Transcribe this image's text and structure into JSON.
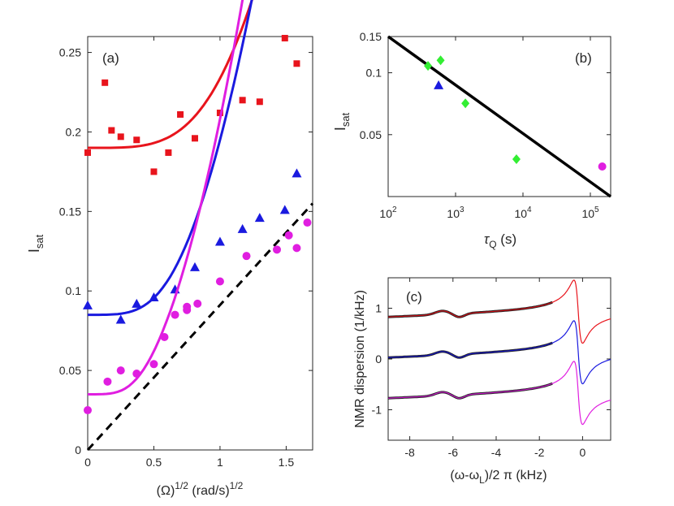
{
  "chart_data": [
    {
      "panel": "a",
      "type": "scatter",
      "label": "(a)",
      "xlabel_base": "(Ω)",
      "xlabel_exp1": "1/2",
      "xlabel_unit": " (rad/s)",
      "xlabel_exp2": "1/2",
      "ylabel_main": "I",
      "ylabel_sub": "sat",
      "xlim": [
        0,
        1.7
      ],
      "ylim": [
        0,
        0.26
      ],
      "xticks": [
        0,
        0.5,
        1,
        1.5
      ],
      "xtick_labels": [
        "0",
        "0.5",
        "1",
        "1.5"
      ],
      "yticks": [
        0,
        0.05,
        0.1,
        0.15,
        0.2,
        0.25
      ],
      "ytick_labels": [
        "0",
        "0.05",
        "0.1",
        "0.15",
        "0.2",
        "0.25"
      ],
      "series": [
        {
          "name": "red squares",
          "marker": "square",
          "color": "#e8141c",
          "x": [
            0,
            0.13,
            0.18,
            0.25,
            0.37,
            0.5,
            0.61,
            0.7,
            0.81,
            1.0,
            1.17,
            1.3,
            1.49,
            1.58
          ],
          "y": [
            0.187,
            0.231,
            0.201,
            0.197,
            0.195,
            0.175,
            0.187,
            0.211,
            0.196,
            0.212,
            0.22,
            0.219,
            0.259,
            0.243
          ],
          "fit": {
            "a": 0.19,
            "b": 0.0185
          }
        },
        {
          "name": "blue triangles",
          "marker": "triangle",
          "color": "#1a1adf",
          "x": [
            0,
            0.25,
            0.37,
            0.5,
            0.66,
            0.81,
            1.0,
            1.17,
            1.3,
            1.49,
            1.58
          ],
          "y": [
            0.091,
            0.082,
            0.092,
            0.096,
            0.101,
            0.115,
            0.131,
            0.139,
            0.146,
            0.151,
            0.174
          ],
          "fit": {
            "a": 0.085,
            "b": 0.0308
          }
        },
        {
          "name": "magenta circles",
          "marker": "circle",
          "color": "#e01ee0",
          "x": [
            0,
            0.15,
            0.25,
            0.37,
            0.5,
            0.58,
            0.66,
            0.75,
            0.75,
            0.83,
            1.0,
            1.2,
            1.43,
            1.52,
            1.58,
            1.66
          ],
          "y": [
            0.025,
            0.043,
            0.05,
            0.048,
            0.054,
            0.071,
            0.085,
            0.088,
            0.09,
            0.092,
            0.106,
            0.122,
            0.126,
            0.135,
            0.127,
            0.143
          ],
          "fit": {
            "a": 0.035,
            "b": 0.0421
          }
        }
      ],
      "reference_line": {
        "style": "dashed",
        "color": "#000000",
        "x": [
          0,
          1.7
        ],
        "y": [
          0,
          0.155
        ]
      }
    },
    {
      "panel": "b",
      "type": "scatter",
      "label": "(b)",
      "xlabel_main": "τ",
      "xlabel_sub": "Q",
      "xlabel_unit": " (s)",
      "ylabel_main": "I",
      "ylabel_sub": "sat",
      "xscale": "log",
      "yscale": "log",
      "xlim": [
        100,
        200000
      ],
      "ylim": [
        0.025,
        0.15
      ],
      "xticks": [
        100,
        1000,
        10000,
        100000
      ],
      "xtick_bases": [
        "10",
        "10",
        "10",
        "10"
      ],
      "xtick_exps": [
        "2",
        "3",
        "4",
        "5"
      ],
      "yticks": [
        0.05,
        0.1,
        0.15
      ],
      "ytick_labels": [
        "0.05",
        "0.1",
        "0.15"
      ],
      "series": [
        {
          "name": "green diamonds",
          "marker": "diamond",
          "color": "#33ee33",
          "x": [
            390,
            600,
            1400,
            8000
          ],
          "y": [
            0.108,
            0.115,
            0.071,
            0.038
          ]
        },
        {
          "name": "blue triangle",
          "marker": "triangle",
          "color": "#1a1adf",
          "x": [
            560
          ],
          "y": [
            0.087
          ]
        },
        {
          "name": "magenta circle",
          "marker": "circle",
          "color": "#e01ee0",
          "x": [
            150000
          ],
          "y": [
            0.035
          ]
        }
      ],
      "fit_line": {
        "color": "#000000",
        "x": [
          100,
          200000
        ],
        "y": [
          0.15,
          0.025
        ]
      }
    },
    {
      "panel": "c",
      "type": "line",
      "label": "(c)",
      "xlabel_text1": "(ω-ω",
      "xlabel_sub": "L",
      "xlabel_text2": ")/2 π (kHz)",
      "ylabel": "NMR dispersion (1/kHz)",
      "xlim": [
        -9,
        1.3
      ],
      "ylim": [
        -1.6,
        1.6
      ],
      "xticks": [
        -8,
        -6,
        -4,
        -2,
        0
      ],
      "xtick_labels": [
        "-8",
        "-6",
        "-4",
        "-2",
        "0"
      ],
      "yticks": [
        -1,
        0,
        1
      ],
      "ytick_labels": [
        "-1",
        "0",
        "1"
      ],
      "series": [
        {
          "name": "red trace",
          "color": "#e8141c",
          "offset": 0.8
        },
        {
          "name": "blue trace",
          "color": "#1a1adf",
          "offset": 0.0
        },
        {
          "name": "magenta trace",
          "color": "#e01ee0",
          "offset": -0.8
        }
      ],
      "fit_overlay": {
        "color": "#000000",
        "x_range": [
          -9,
          -1.4
        ]
      }
    }
  ]
}
